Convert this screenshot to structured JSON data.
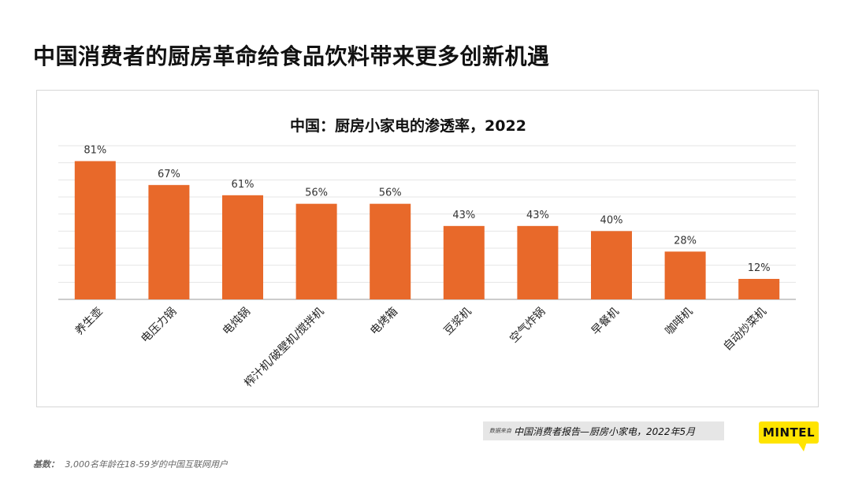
{
  "slide": {
    "title": "中国消费者的厨房革命给食品饮料带来更多创新机遇"
  },
  "chart_data": {
    "type": "bar",
    "title": "中国：厨房小家电的渗透率，2022",
    "categories": [
      "养生壶",
      "电压力锅",
      "电炖锅",
      "榨汁机/破壁机/搅拌机",
      "电烤箱",
      "豆浆机",
      "空气炸锅",
      "早餐机",
      "咖啡机",
      "自动炒菜机"
    ],
    "values": [
      81,
      67,
      61,
      56,
      56,
      43,
      43,
      40,
      28,
      12
    ],
    "data_labels": [
      "81%",
      "67%",
      "61%",
      "56%",
      "56%",
      "43%",
      "43%",
      "40%",
      "28%",
      "12%"
    ],
    "unit": "%",
    "ylim": [
      0,
      90
    ],
    "grid": true,
    "bar_color": "#e8692a",
    "gridline_color": "#e4e4e4",
    "axis_color": "#bbbbbb"
  },
  "footer": {
    "source_label": "数据来自",
    "source_text": "中国消费者报告—厨房小家电，2022年5月",
    "base_label": "基数：",
    "base_text": "3,000名年龄在18-59岁的中国互联网用户",
    "logo_text": "MINTEL",
    "logo_color": "#ffe400"
  }
}
